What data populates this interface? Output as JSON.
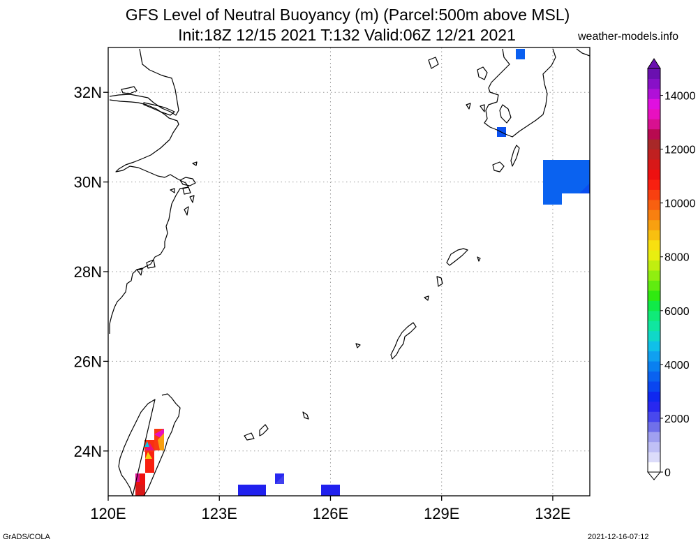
{
  "title": {
    "line1": "GFS Level of Neutral Buoyancy (m) (Parcel:500m above MSL)",
    "line2": "Init:18Z 12/15 2021 T:132 Valid:06Z 12/21 2021"
  },
  "site": "weather-models.info",
  "footer": {
    "left": "GrADS/COLA",
    "right": "2021-12-16-07:12"
  },
  "map": {
    "lon_range": [
      120,
      133
    ],
    "lat_range": [
      23,
      33
    ],
    "lon_ticks": [
      "120E",
      "123E",
      "126E",
      "129E",
      "132E"
    ],
    "lat_ticks": [
      "32N",
      "30N",
      "28N",
      "26N",
      "24N"
    ],
    "grid": "dotted"
  },
  "colorbar": {
    "labels": [
      "0",
      "2000",
      "4000",
      "6000",
      "8000",
      "10000",
      "12000",
      "14000"
    ],
    "units": "m",
    "colors": [
      "#ffffff",
      "#dcdcfa",
      "#c0c0f6",
      "#a0a0f0",
      "#7070ea",
      "#4848ee",
      "#2828f0",
      "#0f28f0",
      "#0a46f0",
      "#0a62f0",
      "#0a80f0",
      "#10a0f0",
      "#10c0e8",
      "#10d8c8",
      "#10e6a0",
      "#10ea78",
      "#10ea48",
      "#30ea10",
      "#60ec10",
      "#90ee10",
      "#c0ee10",
      "#e8ee10",
      "#f8e010",
      "#f8c010",
      "#f8a010",
      "#f88010",
      "#f86010",
      "#f84010",
      "#f82010",
      "#ee1010",
      "#d81818",
      "#c02020",
      "#a82828",
      "#b80a50",
      "#d81090",
      "#e810c0",
      "#e010e0",
      "#b010d8",
      "#8810c8",
      "#6a10b0"
    ]
  }
}
